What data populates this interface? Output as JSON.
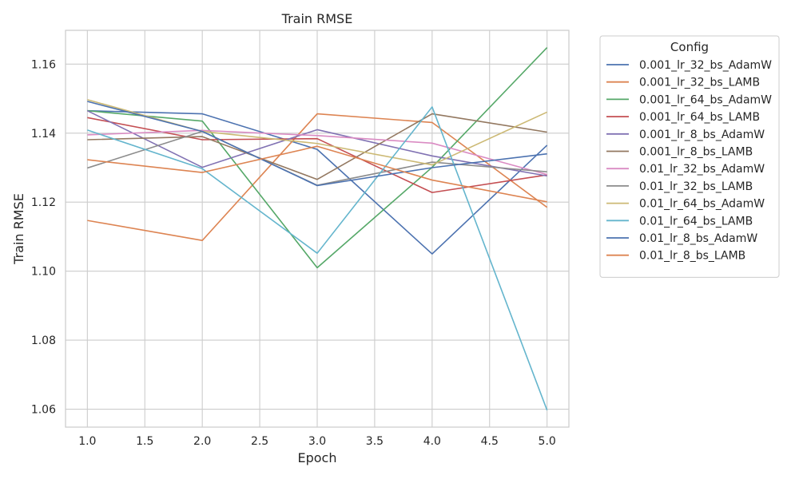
{
  "chart_data": {
    "type": "line",
    "title": "Train RMSE",
    "xlabel": "Epoch",
    "ylabel": "Train RMSE",
    "xlim": [
      0.81,
      5.19
    ],
    "ylim": [
      1.0548,
      1.1698
    ],
    "xticks": [
      "1.0",
      "1.5",
      "2.0",
      "2.5",
      "3.0",
      "3.5",
      "4.0",
      "4.5",
      "5.0"
    ],
    "yticks": [
      "1.06",
      "1.08",
      "1.10",
      "1.12",
      "1.14",
      "1.16"
    ],
    "grid": true,
    "legend": {
      "title": "Config",
      "placement": "outside-right"
    },
    "x": [
      1,
      2,
      3,
      4,
      5
    ],
    "series": [
      {
        "name": "0.001_lr_32_bs_AdamW",
        "color": "#4c72b0",
        "values": [
          1.1465,
          1.1456,
          1.1353,
          1.105,
          1.1365
        ]
      },
      {
        "name": "0.001_lr_32_bs_LAMB",
        "color": "#dd8452",
        "values": [
          1.1147,
          1.1089,
          1.1456,
          1.1431,
          1.1185
        ]
      },
      {
        "name": "0.001_lr_64_bs_AdamW",
        "color": "#55a868",
        "values": [
          1.1465,
          1.1435,
          1.101,
          1.1301,
          1.1648
        ]
      },
      {
        "name": "0.001_lr_64_bs_LAMB",
        "color": "#c44e52",
        "values": [
          1.1445,
          1.1381,
          1.1384,
          1.1228,
          1.1279
        ]
      },
      {
        "name": "0.001_lr_8_bs_AdamW",
        "color": "#8172b3",
        "values": [
          1.1465,
          1.1301,
          1.141,
          1.1334,
          1.1276
        ]
      },
      {
        "name": "0.001_lr_8_bs_LAMB",
        "color": "#937860",
        "values": [
          1.1381,
          1.139,
          1.1266,
          1.1456,
          1.1403
        ]
      },
      {
        "name": "0.01_lr_32_bs_AdamW",
        "color": "#da8bc3",
        "values": [
          1.1395,
          1.1408,
          1.1393,
          1.1371,
          1.128
        ]
      },
      {
        "name": "0.01_lr_32_bs_LAMB",
        "color": "#8c8c8c",
        "values": [
          1.1299,
          1.1405,
          1.1249,
          1.1316,
          1.1288
        ]
      },
      {
        "name": "0.01_lr_64_bs_AdamW",
        "color": "#ccb974",
        "values": [
          1.1497,
          1.1405,
          1.137,
          1.1308,
          1.1461
        ]
      },
      {
        "name": "0.01_lr_64_bs_LAMB",
        "color": "#64b5cd",
        "values": [
          1.1409,
          1.1297,
          1.1052,
          1.1476,
          1.0597
        ]
      },
      {
        "name": "0.01_lr_8_bs_AdamW",
        "color": "#4c72b0",
        "values": [
          1.1492,
          1.1405,
          1.1248,
          1.13,
          1.134
        ]
      },
      {
        "name": "0.01_lr_8_bs_LAMB",
        "color": "#dd8452",
        "values": [
          1.1323,
          1.1286,
          1.1362,
          1.1264,
          1.1201
        ]
      }
    ]
  }
}
